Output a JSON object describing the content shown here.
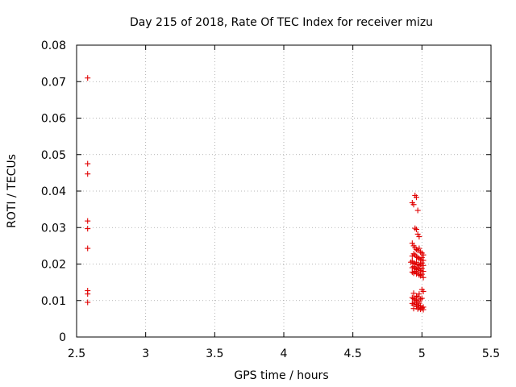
{
  "chart_data": {
    "type": "scatter",
    "title": "Day 215 of 2018, Rate Of TEC Index for receiver mizu",
    "xlabel": "GPS time / hours",
    "ylabel": "ROTI / TECUs",
    "xlim": [
      2.5,
      5.5
    ],
    "ylim": [
      0,
      0.08
    ],
    "xticks": [
      2.5,
      3,
      3.5,
      4,
      4.5,
      5,
      5.5
    ],
    "xtick_labels": [
      "2.5",
      "3",
      "3.5",
      "4",
      "4.5",
      "5",
      "5.5"
    ],
    "yticks": [
      0,
      0.01,
      0.02,
      0.03,
      0.04,
      0.05,
      0.06,
      0.07,
      0.08
    ],
    "ytick_labels": [
      "0",
      "0.01",
      "0.02",
      "0.03",
      "0.04",
      "0.05",
      "0.06",
      "0.07",
      "0.08"
    ],
    "grid": true,
    "marker": "+",
    "color": "#e00000",
    "series": [
      {
        "name": "ROTI",
        "x": [
          2.58,
          2.58,
          2.58,
          2.58,
          2.58,
          2.58,
          2.58,
          2.58,
          2.58,
          4.93,
          4.94,
          4.96,
          4.95,
          4.97,
          4.95,
          4.96,
          4.97,
          4.98,
          4.93,
          4.94,
          4.95,
          4.96,
          4.97,
          4.98,
          4.99,
          5.0,
          5.01,
          4.93,
          4.94,
          4.95,
          4.96,
          4.97,
          4.98,
          4.99,
          5.0,
          5.01,
          4.92,
          4.93,
          4.94,
          4.95,
          4.96,
          4.97,
          4.98,
          4.99,
          5.0,
          5.01,
          4.93,
          4.94,
          4.95,
          4.96,
          4.97,
          4.98,
          4.99,
          5.0,
          5.01,
          4.93,
          4.94,
          4.95,
          4.96,
          4.97,
          4.98,
          4.99,
          5.0,
          5.01,
          4.94,
          4.96,
          4.98,
          5.0,
          5.01,
          4.93,
          4.94,
          4.95,
          4.96,
          4.97,
          4.98,
          4.99,
          5.0,
          4.93,
          4.94,
          4.95,
          4.96,
          4.97,
          4.98,
          4.99,
          5.0,
          5.01,
          4.94,
          4.96,
          4.97,
          4.98,
          4.99,
          5.0,
          5.01
        ],
        "y": [
          0.071,
          0.0475,
          0.0447,
          0.0318,
          0.0297,
          0.0243,
          0.0127,
          0.0118,
          0.0095,
          0.0368,
          0.0363,
          0.0383,
          0.0388,
          0.0347,
          0.0298,
          0.0295,
          0.0282,
          0.0275,
          0.0257,
          0.025,
          0.0245,
          0.024,
          0.0237,
          0.0243,
          0.0233,
          0.023,
          0.0225,
          0.0222,
          0.0228,
          0.0225,
          0.022,
          0.0218,
          0.0215,
          0.0212,
          0.0218,
          0.021,
          0.0205,
          0.0208,
          0.0202,
          0.02,
          0.0205,
          0.0198,
          0.0195,
          0.02,
          0.0203,
          0.0196,
          0.019,
          0.0193,
          0.0188,
          0.0185,
          0.019,
          0.0186,
          0.0182,
          0.0188,
          0.018,
          0.0178,
          0.0175,
          0.018,
          0.0173,
          0.0177,
          0.017,
          0.0168,
          0.0172,
          0.0163,
          0.012,
          0.0112,
          0.0118,
          0.013,
          0.0125,
          0.0108,
          0.0105,
          0.0102,
          0.01,
          0.011,
          0.0098,
          0.0104,
          0.0106,
          0.0092,
          0.0088,
          0.0095,
          0.009,
          0.0087,
          0.0093,
          0.0085,
          0.008,
          0.0082,
          0.0078,
          0.0083,
          0.0077,
          0.008,
          0.0076,
          0.0079,
          0.0075
        ]
      }
    ]
  }
}
